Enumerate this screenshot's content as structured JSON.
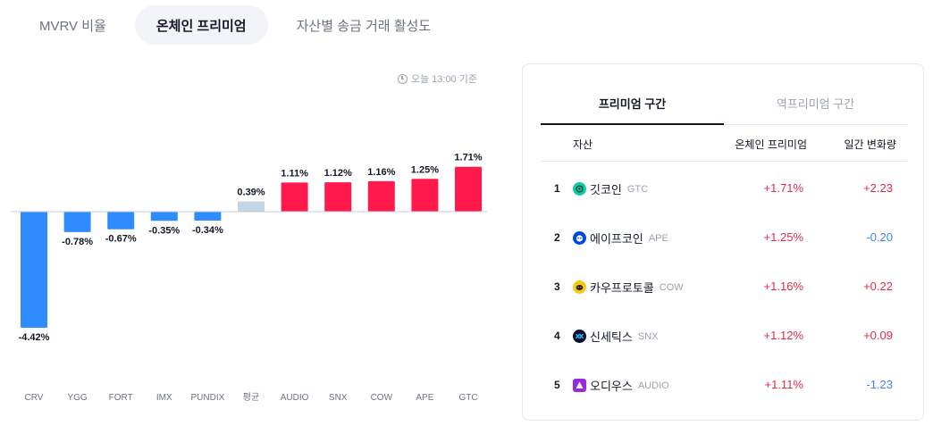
{
  "top_tabs": [
    {
      "label": "MVRV 비율",
      "active": false
    },
    {
      "label": "온체인 프리미엄",
      "active": true
    },
    {
      "label": "자산별 송금 거래 활성도",
      "active": false
    }
  ],
  "timestamp": "오늘 13:00 기준",
  "colors": {
    "positive": "#ff1a4b",
    "negative": "#2f8cff",
    "average": "#c4d5e6"
  },
  "chart_data": {
    "type": "bar",
    "categories": [
      "CRV",
      "YGG",
      "FORT",
      "IMX",
      "PUNDIX",
      "평균",
      "AUDIO",
      "SNX",
      "COW",
      "APE",
      "GTC"
    ],
    "values": [
      -4.42,
      -0.78,
      -0.67,
      -0.35,
      -0.34,
      0.39,
      1.11,
      1.12,
      1.16,
      1.25,
      1.71
    ],
    "labels": [
      "-4.42%",
      "-0.78%",
      "-0.67%",
      "-0.35%",
      "-0.34%",
      "0.39%",
      "1.11%",
      "1.12%",
      "1.16%",
      "1.25%",
      "1.71%"
    ],
    "average_category": "평균",
    "ylim": [
      -4.42,
      1.71
    ]
  },
  "rank_panel": {
    "tabs": [
      {
        "label": "프리미엄 구간",
        "active": true
      },
      {
        "label": "역프리미엄 구간",
        "active": false
      }
    ],
    "headers": {
      "asset": "자산",
      "premium": "온체인 프리미엄",
      "change": "일간 변화량"
    },
    "rows": [
      {
        "rank": "1",
        "name": "깃코인",
        "symbol": "GTC",
        "premium": "+1.71%",
        "change": "+2.23",
        "icon": "gitcoin-icon",
        "icon_color": "#11c9a4"
      },
      {
        "rank": "2",
        "name": "에이프코인",
        "symbol": "APE",
        "premium": "+1.25%",
        "change": "-0.20",
        "icon": "apecoin-icon",
        "icon_color": "#0046e8"
      },
      {
        "rank": "3",
        "name": "카우프로토콜",
        "symbol": "COW",
        "premium": "+1.16%",
        "change": "+0.22",
        "icon": "cow-protocol-icon",
        "icon_color": "#f6c919"
      },
      {
        "rank": "4",
        "name": "신세틱스",
        "symbol": "SNX",
        "premium": "+1.12%",
        "change": "+0.09",
        "icon": "synthetix-icon",
        "icon_color": "#0b0a2c"
      },
      {
        "rank": "5",
        "name": "오디우스",
        "symbol": "AUDIO",
        "premium": "+1.11%",
        "change": "-1.23",
        "icon": "audius-icon",
        "icon_color": "#9b2bd9"
      }
    ]
  }
}
